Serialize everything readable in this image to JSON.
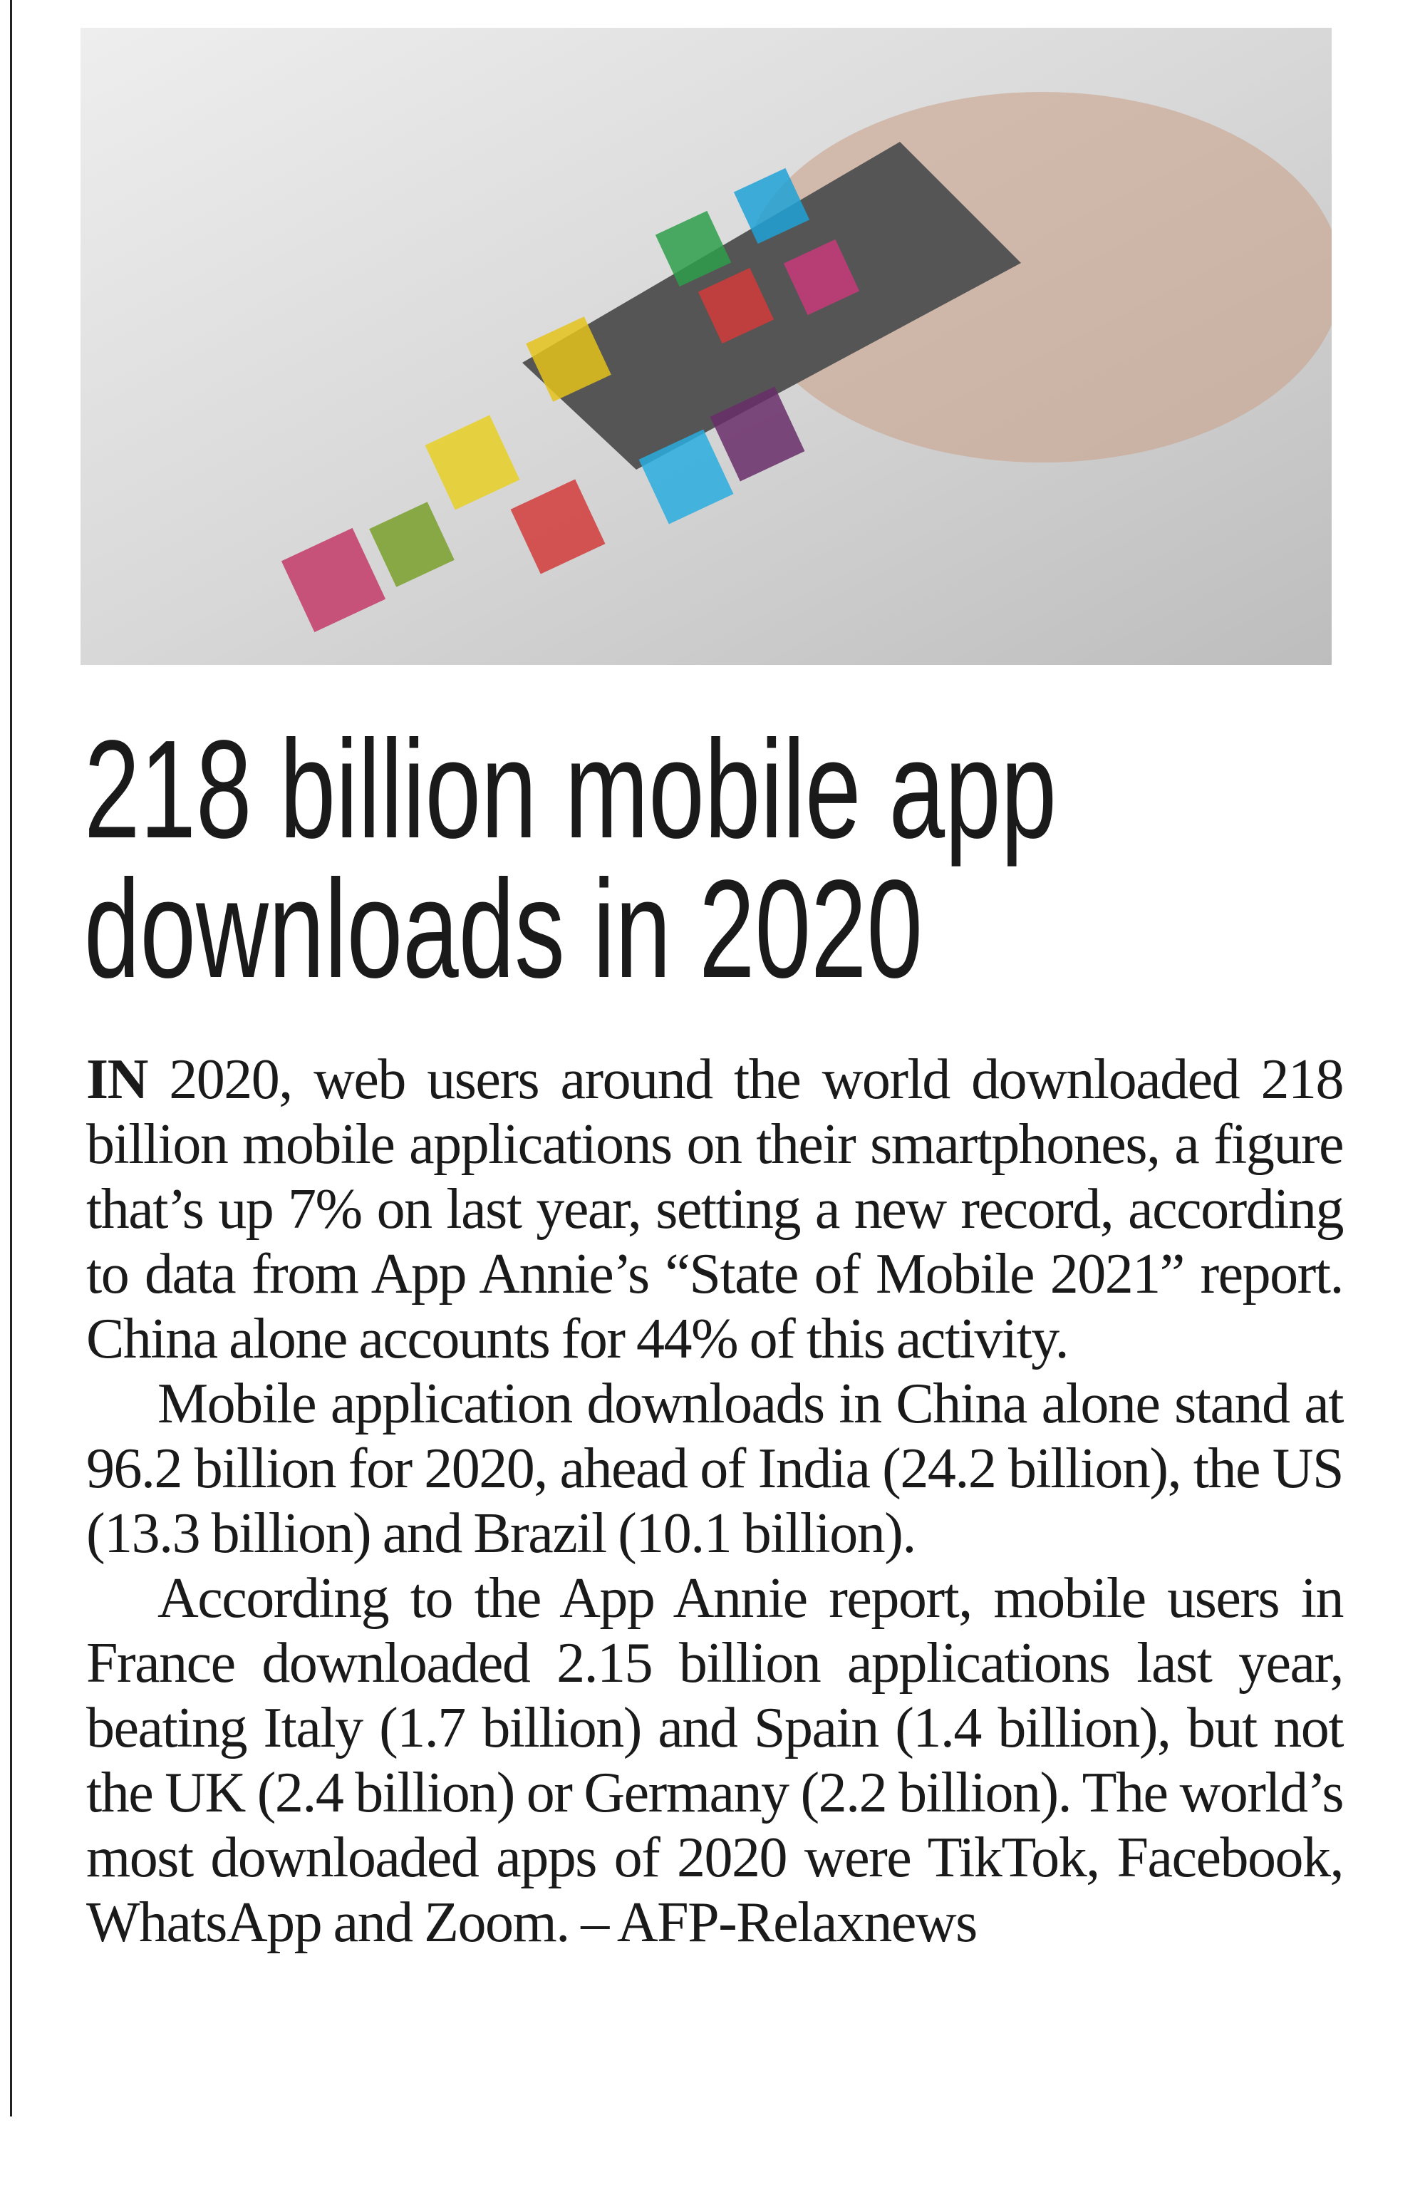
{
  "article": {
    "headline": "218 billion mobile app downloads in 2020",
    "paragraphs": [
      {
        "lead": "IN",
        "text": " 2020, web users around the world downloaded 218 billion mobile applications on their smartphones, a figure that’s up 7% on last year, setting a new record, according to data from App Annie’s “State of Mobile 2021” report. China alone accounts for 44% of this activity."
      },
      {
        "text": "Mobile application downloads in China alone stand at 96.2 billion for 2020, ahead of India (24.2 billion), the US (13.3 billion) and Brazil (10.1 billion)."
      },
      {
        "text": "According to the App Annie report, mobile users in France downloaded 2.15 billion applications last year, beating Italy (1.7 billion) and Spain (1.4 billion), but not the UK (2.4 billion) or Germany (2.2 billion). The world’s most downloaded apps of 2020 were TikTok, Facebook, WhatsApp and Zoom. –"
      }
    ],
    "byline": "AFP-Relaxnews"
  }
}
